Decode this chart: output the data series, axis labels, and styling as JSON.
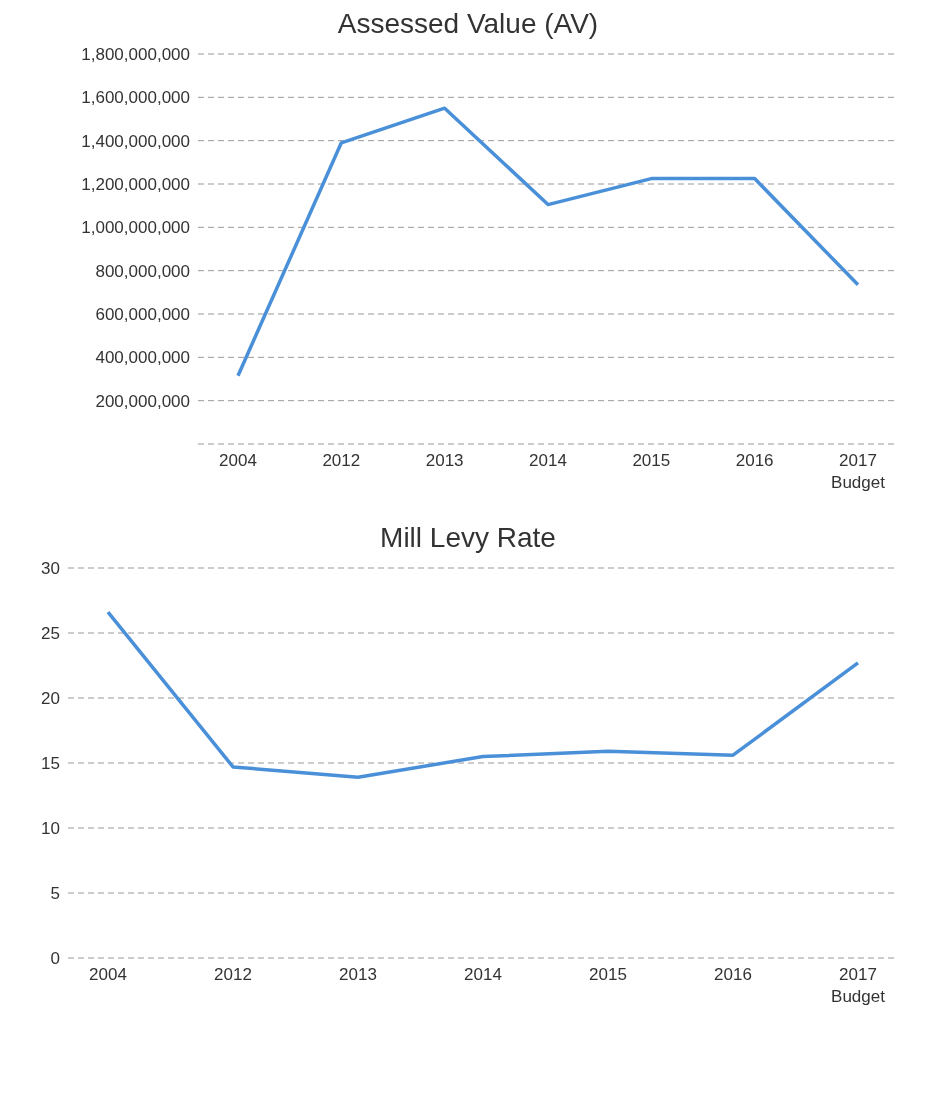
{
  "chart_data": [
    {
      "type": "line",
      "title": "Assessed Value (AV)",
      "categories": [
        "2004",
        "2012",
        "2013",
        "2014",
        "2015",
        "2016",
        "2017\nBudget"
      ],
      "series": [
        {
          "color": "#4a90d9",
          "values": [
            315000000,
            1390000000,
            1550000000,
            1105000000,
            1225000000,
            1225000000,
            735000000
          ]
        }
      ],
      "ylim": [
        0,
        1800000000
      ],
      "yticks": [
        {
          "value": 0,
          "label": null
        },
        {
          "value": 200000000,
          "label": "200,000,000"
        },
        {
          "value": 400000000,
          "label": "400,000,000"
        },
        {
          "value": 600000000,
          "label": "600,000,000"
        },
        {
          "value": 800000000,
          "label": "800,000,000"
        },
        {
          "value": 1000000000,
          "label": "1,000,000,000"
        },
        {
          "value": 1200000000,
          "label": "1,200,000,000"
        },
        {
          "value": 1400000000,
          "label": "1,400,000,000"
        },
        {
          "value": 1600000000,
          "label": "1,600,000,000"
        },
        {
          "value": 1800000000,
          "label": "1,800,000,000"
        }
      ],
      "grid": "y",
      "marker": "none"
    },
    {
      "type": "line",
      "title": "Mill Levy Rate",
      "categories": [
        "2004",
        "2012",
        "2013",
        "2014",
        "2015",
        "2016",
        "2017\nBudget"
      ],
      "series": [
        {
          "color": "#4a90d9",
          "values": [
            26.6,
            14.7,
            13.9,
            15.5,
            15.9,
            15.6,
            22.7
          ]
        }
      ],
      "ylim": [
        0,
        30
      ],
      "yticks": [
        0,
        5,
        10,
        15,
        20,
        25,
        30
      ],
      "grid": "y",
      "marker": "none"
    }
  ]
}
